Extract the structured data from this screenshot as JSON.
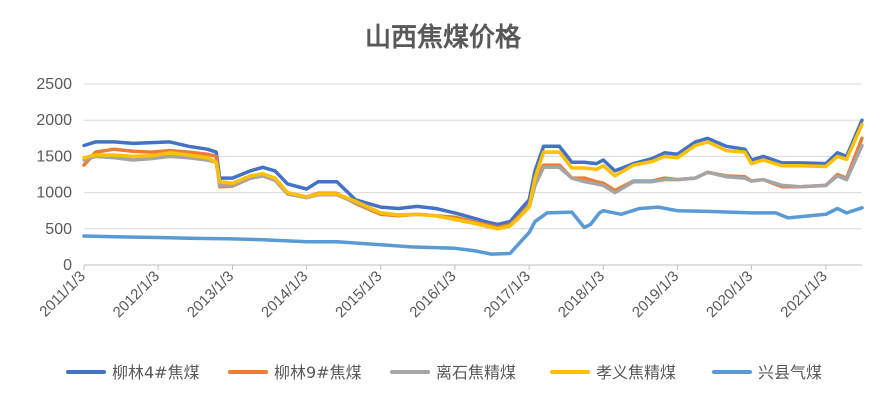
{
  "chart_data": {
    "type": "line",
    "title": "山西焦煤价格",
    "xlabel": "",
    "ylabel": "",
    "ylim": [
      0,
      2500
    ],
    "yticks": [
      "0",
      "500",
      "1000",
      "1500",
      "2000",
      "2500"
    ],
    "grid": "horizontal",
    "legend_position": "bottom",
    "xlim": [
      "2011-01-03",
      "2021-06-30"
    ],
    "xticks": [
      {
        "label": "2011/1/3",
        "date": "2011-01-03"
      },
      {
        "label": "2012/1/3",
        "date": "2012-01-03"
      },
      {
        "label": "2013/1/3",
        "date": "2013-01-03"
      },
      {
        "label": "2014/1/3",
        "date": "2014-01-03"
      },
      {
        "label": "2015/1/3",
        "date": "2015-01-03"
      },
      {
        "label": "2016/1/3",
        "date": "2016-01-03"
      },
      {
        "label": "2017/1/3",
        "date": "2017-01-03"
      },
      {
        "label": "2018/1/3",
        "date": "2018-01-03"
      },
      {
        "label": "2019/1/3",
        "date": "2019-01-03"
      },
      {
        "label": "2020/1/3",
        "date": "2020-01-03"
      },
      {
        "label": "2021/1/3",
        "date": "2021-01-03"
      }
    ],
    "series": [
      {
        "name": "柳林4#焦煤",
        "color": "#4472C4",
        "x": [
          "2011-01-03",
          "2011-03-01",
          "2011-06-01",
          "2011-09-01",
          "2011-12-01",
          "2012-03-01",
          "2012-06-01",
          "2012-09-01",
          "2012-10-15",
          "2012-11-01",
          "2013-01-03",
          "2013-04-01",
          "2013-06-01",
          "2013-08-01",
          "2013-10-01",
          "2014-01-03",
          "2014-03-01",
          "2014-06-01",
          "2014-09-01",
          "2015-01-03",
          "2015-04-01",
          "2015-07-01",
          "2015-10-01",
          "2016-01-03",
          "2016-04-01",
          "2016-06-01",
          "2016-08-01",
          "2016-10-01",
          "2016-11-01",
          "2017-01-03",
          "2017-02-01",
          "2017-03-15",
          "2017-06-01",
          "2017-08-01",
          "2017-10-01",
          "2017-12-01",
          "2018-01-03",
          "2018-03-01",
          "2018-06-01",
          "2018-09-01",
          "2018-11-01",
          "2019-01-03",
          "2019-04-01",
          "2019-06-01",
          "2019-09-01",
          "2019-12-01",
          "2020-01-03",
          "2020-03-01",
          "2020-06-01",
          "2020-09-01",
          "2021-01-03",
          "2021-03-01",
          "2021-04-15",
          "2021-06-30"
        ],
        "values": [
          1650,
          1700,
          1700,
          1680,
          1690,
          1700,
          1640,
          1600,
          1560,
          1200,
          1200,
          1300,
          1350,
          1300,
          1120,
          1050,
          1150,
          1150,
          900,
          800,
          780,
          810,
          780,
          720,
          650,
          600,
          560,
          600,
          700,
          900,
          1300,
          1640,
          1640,
          1420,
          1420,
          1400,
          1450,
          1300,
          1400,
          1470,
          1550,
          1530,
          1700,
          1750,
          1640,
          1600,
          1450,
          1500,
          1410,
          1410,
          1400,
          1550,
          1500,
          2000
        ]
      },
      {
        "name": "柳林9#焦煤",
        "color": "#ED7D31",
        "x": [
          "2011-01-03",
          "2011-03-01",
          "2011-06-01",
          "2011-09-01",
          "2011-12-01",
          "2012-03-01",
          "2012-06-01",
          "2012-09-01",
          "2012-10-15",
          "2012-11-01",
          "2013-01-03",
          "2013-04-01",
          "2013-06-01",
          "2013-08-01",
          "2013-10-01",
          "2014-01-03",
          "2014-03-01",
          "2014-06-01",
          "2014-09-01",
          "2015-01-03",
          "2015-04-01",
          "2015-07-01",
          "2015-10-01",
          "2016-01-03",
          "2016-04-01",
          "2016-06-01",
          "2016-08-01",
          "2016-10-01",
          "2016-11-01",
          "2017-01-03",
          "2017-02-01",
          "2017-03-15",
          "2017-06-01",
          "2017-08-01",
          "2017-10-01",
          "2017-12-01",
          "2018-01-03",
          "2018-03-01",
          "2018-06-01",
          "2018-09-01",
          "2018-11-01",
          "2019-01-03",
          "2019-04-01",
          "2019-06-01",
          "2019-09-01",
          "2019-12-01",
          "2020-01-03",
          "2020-03-01",
          "2020-06-01",
          "2020-09-01",
          "2021-01-03",
          "2021-03-01",
          "2021-04-15",
          "2021-06-30"
        ],
        "values": [
          1380,
          1560,
          1600,
          1570,
          1560,
          1580,
          1560,
          1530,
          1500,
          1080,
          1090,
          1200,
          1230,
          1180,
          990,
          940,
          990,
          990,
          850,
          700,
          680,
          700,
          680,
          660,
          600,
          560,
          520,
          560,
          640,
          820,
          1150,
          1380,
          1380,
          1200,
          1200,
          1150,
          1130,
          1030,
          1160,
          1160,
          1200,
          1180,
          1200,
          1280,
          1230,
          1220,
          1160,
          1180,
          1080,
          1080,
          1100,
          1250,
          1200,
          1750
        ]
      },
      {
        "name": "离石焦精煤",
        "color": "#A5A5A5",
        "x": [
          "2011-01-03",
          "2011-03-01",
          "2011-06-01",
          "2011-09-01",
          "2011-12-01",
          "2012-03-01",
          "2012-06-01",
          "2012-09-01",
          "2012-10-15",
          "2012-11-01",
          "2013-01-03",
          "2013-04-01",
          "2013-06-01",
          "2013-08-01",
          "2013-10-01",
          "2014-01-03",
          "2014-03-01",
          "2014-06-01",
          "2014-09-01",
          "2015-01-03",
          "2015-04-01",
          "2015-07-01",
          "2015-10-01",
          "2016-01-03",
          "2016-04-01",
          "2016-06-01",
          "2016-08-01",
          "2016-10-01",
          "2016-11-01",
          "2017-01-03",
          "2017-02-01",
          "2017-03-15",
          "2017-06-01",
          "2017-08-01",
          "2017-10-01",
          "2017-12-01",
          "2018-01-03",
          "2018-03-01",
          "2018-06-01",
          "2018-09-01",
          "2018-11-01",
          "2019-01-03",
          "2019-04-01",
          "2019-06-01",
          "2019-09-01",
          "2019-12-01",
          "2020-01-03",
          "2020-03-01",
          "2020-06-01",
          "2020-09-01",
          "2021-01-03",
          "2021-03-01",
          "2021-04-15",
          "2021-06-30"
        ],
        "values": [
          1450,
          1500,
          1480,
          1450,
          1470,
          1500,
          1480,
          1450,
          1420,
          1100,
          1100,
          1200,
          1230,
          1170,
          980,
          930,
          970,
          970,
          860,
          720,
          690,
          700,
          680,
          630,
          580,
          540,
          500,
          540,
          620,
          800,
          1100,
          1350,
          1350,
          1200,
          1150,
          1120,
          1100,
          1000,
          1150,
          1150,
          1180,
          1180,
          1200,
          1280,
          1220,
          1200,
          1160,
          1180,
          1100,
          1080,
          1100,
          1230,
          1180,
          1650
        ]
      },
      {
        "name": "孝义焦精煤",
        "color": "#FFC000",
        "x": [
          "2011-01-03",
          "2011-03-01",
          "2011-06-01",
          "2011-09-01",
          "2011-12-01",
          "2012-03-01",
          "2012-06-01",
          "2012-09-01",
          "2012-10-15",
          "2012-11-01",
          "2013-01-03",
          "2013-04-01",
          "2013-06-01",
          "2013-08-01",
          "2013-10-01",
          "2014-01-03",
          "2014-03-01",
          "2014-06-01",
          "2014-09-01",
          "2015-01-03",
          "2015-04-01",
          "2015-07-01",
          "2015-10-01",
          "2016-01-03",
          "2016-04-01",
          "2016-06-01",
          "2016-08-01",
          "2016-10-01",
          "2016-11-01",
          "2017-01-03",
          "2017-02-01",
          "2017-03-15",
          "2017-06-01",
          "2017-08-01",
          "2017-10-01",
          "2017-12-01",
          "2018-01-03",
          "2018-03-01",
          "2018-06-01",
          "2018-09-01",
          "2018-11-01",
          "2019-01-03",
          "2019-04-01",
          "2019-06-01",
          "2019-09-01",
          "2019-12-01",
          "2020-01-03",
          "2020-03-01",
          "2020-06-01",
          "2020-09-01",
          "2021-01-03",
          "2021-03-01",
          "2021-04-15",
          "2021-06-30"
        ],
        "values": [
          1480,
          1520,
          1520,
          1500,
          1510,
          1550,
          1520,
          1480,
          1420,
          1150,
          1130,
          1230,
          1260,
          1200,
          1000,
          940,
          980,
          980,
          880,
          720,
          690,
          700,
          680,
          630,
          580,
          540,
          500,
          540,
          620,
          800,
          1200,
          1560,
          1560,
          1340,
          1340,
          1320,
          1370,
          1230,
          1380,
          1430,
          1500,
          1480,
          1650,
          1700,
          1580,
          1560,
          1400,
          1450,
          1370,
          1370,
          1360,
          1500,
          1460,
          1940
        ]
      },
      {
        "name": "兴县气煤",
        "color": "#5B9BD5",
        "x": [
          "2011-01-03",
          "2011-06-01",
          "2012-01-03",
          "2012-06-01",
          "2013-01-03",
          "2013-06-01",
          "2014-01-03",
          "2014-06-01",
          "2015-01-03",
          "2015-06-01",
          "2016-01-03",
          "2016-04-01",
          "2016-07-01",
          "2016-10-01",
          "2016-11-15",
          "2017-01-03",
          "2017-02-01",
          "2017-04-01",
          "2017-08-01",
          "2017-10-01",
          "2017-11-01",
          "2017-12-15",
          "2018-01-03",
          "2018-04-01",
          "2018-07-01",
          "2018-10-01",
          "2019-01-03",
          "2019-06-01",
          "2020-01-03",
          "2020-05-01",
          "2020-07-01",
          "2021-01-03",
          "2021-03-01",
          "2021-04-15",
          "2021-06-30"
        ],
        "values": [
          400,
          390,
          380,
          370,
          360,
          350,
          320,
          320,
          280,
          250,
          230,
          200,
          150,
          160,
          300,
          450,
          600,
          720,
          730,
          520,
          560,
          720,
          750,
          700,
          780,
          800,
          750,
          740,
          720,
          720,
          650,
          700,
          780,
          720,
          790
        ]
      }
    ]
  }
}
